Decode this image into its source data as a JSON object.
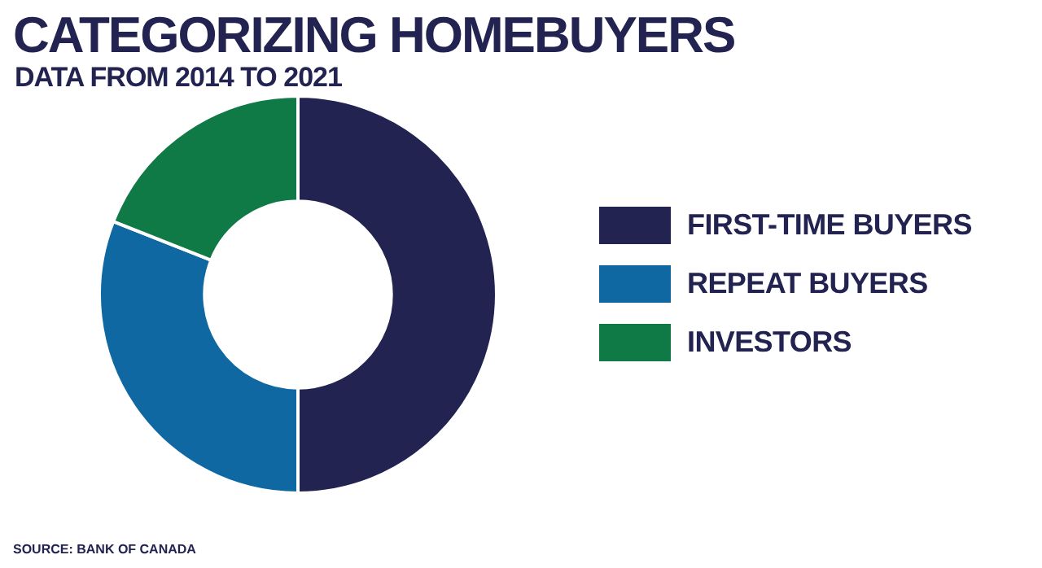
{
  "chart_data": {
    "type": "donut",
    "title": "CATEGORIZING HOMEBUYERS",
    "subtitle": "DATA FROM 2014 TO 2021",
    "categories": [
      "FIRST-TIME BUYERS",
      "REPEAT BUYERS",
      "INVESTORS"
    ],
    "values": [
      50,
      31,
      19
    ],
    "colors": [
      "#222350",
      "#1068a3",
      "#0f7a45"
    ],
    "legend": "right",
    "annotations": [
      "SOURCE: BANK OF CANADA"
    ]
  }
}
